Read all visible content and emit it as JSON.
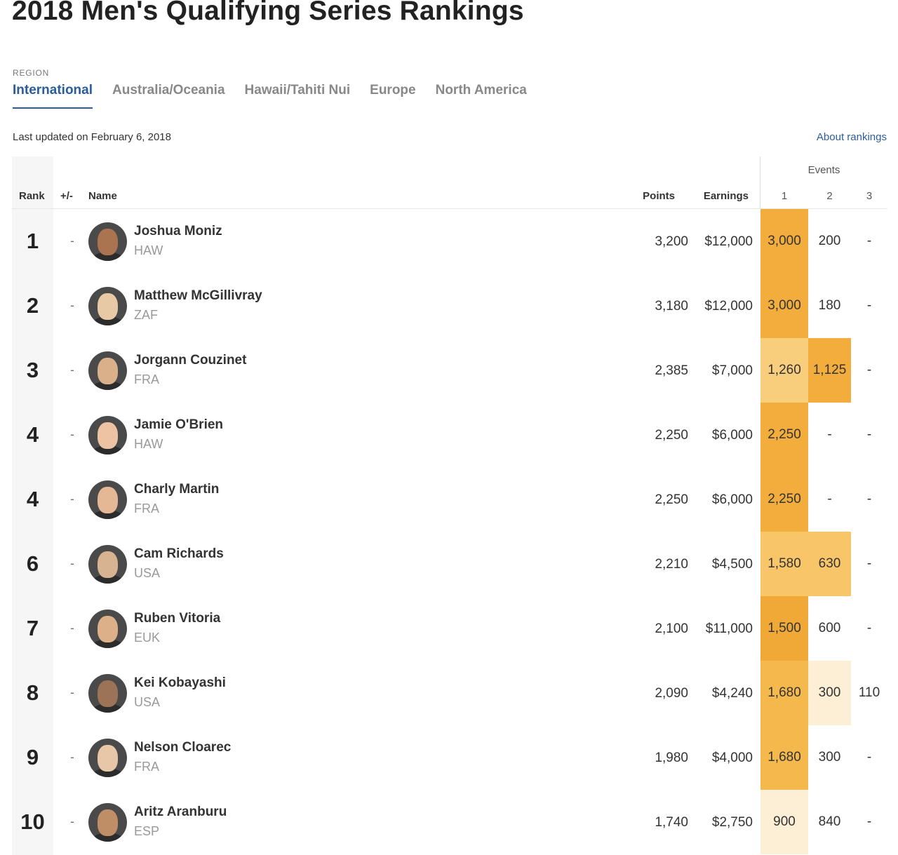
{
  "page_title": "2018 Men's Qualifying Series Rankings",
  "region_label": "REGION",
  "tabs": [
    {
      "label": "International",
      "active": true
    },
    {
      "label": "Australia/Oceania",
      "active": false
    },
    {
      "label": "Hawaii/Tahiti Nui",
      "active": false
    },
    {
      "label": "Europe",
      "active": false
    },
    {
      "label": "North America",
      "active": false
    }
  ],
  "last_updated": "Last updated on February 6, 2018",
  "about_link": "About rankings",
  "table": {
    "headers": {
      "rank": "Rank",
      "change": "+/-",
      "name": "Name",
      "points": "Points",
      "earnings": "Earnings",
      "events": "Events"
    },
    "event_numbers": [
      "1",
      "2",
      "3"
    ],
    "rows": [
      {
        "rank": "1",
        "change": "-",
        "name": "Joshua Moniz",
        "country": "HAW",
        "points": "3,200",
        "earnings": "$12,000",
        "events": [
          "3,000",
          "200",
          "-"
        ],
        "event_colors": [
          "#f3ad3d",
          "",
          ""
        ]
      },
      {
        "rank": "2",
        "change": "-",
        "name": "Matthew McGillivray",
        "country": "ZAF",
        "points": "3,180",
        "earnings": "$12,000",
        "events": [
          "3,000",
          "180",
          "-"
        ],
        "event_colors": [
          "#f3ad3d",
          "",
          ""
        ]
      },
      {
        "rank": "3",
        "change": "-",
        "name": "Jorgann Couzinet",
        "country": "FRA",
        "points": "2,385",
        "earnings": "$7,000",
        "events": [
          "1,260",
          "1,125",
          "-"
        ],
        "event_colors": [
          "#f8cd7b",
          "#f3ad3d",
          ""
        ]
      },
      {
        "rank": "4",
        "change": "-",
        "name": "Jamie O'Brien",
        "country": "HAW",
        "points": "2,250",
        "earnings": "$6,000",
        "events": [
          "2,250",
          "-",
          "-"
        ],
        "event_colors": [
          "#f3ad3d",
          "",
          ""
        ]
      },
      {
        "rank": "4",
        "change": "-",
        "name": "Charly Martin",
        "country": "FRA",
        "points": "2,250",
        "earnings": "$6,000",
        "events": [
          "2,250",
          "-",
          "-"
        ],
        "event_colors": [
          "#f3ad3d",
          "",
          ""
        ]
      },
      {
        "rank": "6",
        "change": "-",
        "name": "Cam Richards",
        "country": "USA",
        "points": "2,210",
        "earnings": "$4,500",
        "events": [
          "1,580",
          "630",
          "-"
        ],
        "event_colors": [
          "#f8c569",
          "#f8c569",
          ""
        ]
      },
      {
        "rank": "7",
        "change": "-",
        "name": "Ruben Vitoria",
        "country": "EUK",
        "points": "2,100",
        "earnings": "$11,000",
        "events": [
          "1,500",
          "600",
          "-"
        ],
        "event_colors": [
          "#f0a836",
          "",
          ""
        ]
      },
      {
        "rank": "8",
        "change": "-",
        "name": "Kei Kobayashi",
        "country": "USA",
        "points": "2,090",
        "earnings": "$4,240",
        "events": [
          "1,680",
          "300",
          "110"
        ],
        "event_colors": [
          "#f5b84d",
          "#fdefd6",
          ""
        ]
      },
      {
        "rank": "9",
        "change": "-",
        "name": "Nelson Cloarec",
        "country": "FRA",
        "points": "1,980",
        "earnings": "$4,000",
        "events": [
          "1,680",
          "300",
          "-"
        ],
        "event_colors": [
          "#f5b84d",
          "",
          ""
        ]
      },
      {
        "rank": "10",
        "change": "-",
        "name": "Aritz Aranburu",
        "country": "ESP",
        "points": "1,740",
        "earnings": "$2,750",
        "events": [
          "900",
          "840",
          "-"
        ],
        "event_colors": [
          "#fdefd6",
          "",
          ""
        ]
      }
    ]
  },
  "avatar_skin_tones": [
    "#a9744f",
    "#e8c9a6",
    "#d9b08a",
    "#eec3a4",
    "#e5b895",
    "#d8b391",
    "#dcb089",
    "#9c7356",
    "#e7c7a8",
    "#bf8d66"
  ]
}
